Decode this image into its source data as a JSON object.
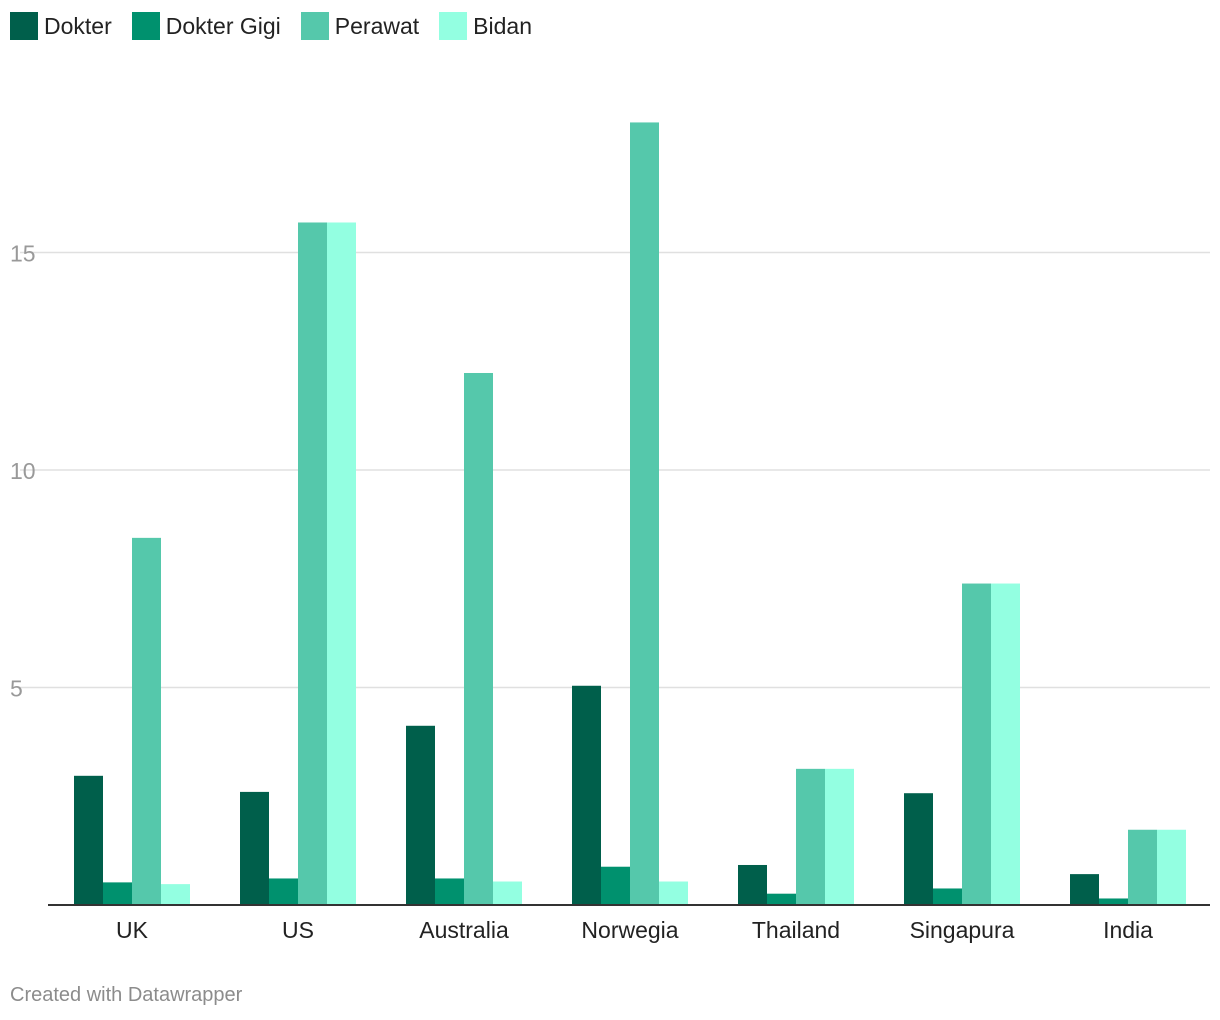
{
  "chart_data": {
    "type": "bar",
    "title": "",
    "xlabel": "",
    "ylabel": "",
    "categories": [
      "UK",
      "US",
      "Australia",
      "Norwegia",
      "Thailand",
      "Singapura",
      "India"
    ],
    "series": [
      {
        "name": "Dokter",
        "color": "#005f4b",
        "values": [
          2.97,
          2.6,
          4.12,
          5.04,
          0.92,
          2.57,
          0.71
        ]
      },
      {
        "name": "Dokter Gigi",
        "color": "#00916e",
        "values": [
          0.52,
          0.61,
          0.61,
          0.88,
          0.26,
          0.38,
          0.15
        ]
      },
      {
        "name": "Perawat",
        "color": "#55c8ab",
        "values": [
          8.44,
          15.69,
          12.23,
          17.99,
          3.13,
          7.39,
          1.73
        ]
      },
      {
        "name": "Bidan",
        "color": "#93ffe1",
        "values": [
          0.48,
          15.69,
          0.54,
          0.54,
          3.13,
          7.39,
          1.73
        ]
      }
    ],
    "ylim": [
      0,
      18.4
    ],
    "yticks": [
      5,
      10,
      15
    ],
    "grid": true,
    "legend_position": "top-left",
    "colors": {
      "gridline": "#e0e0e0",
      "axis": "#333333",
      "tick_label": "#999999",
      "category_label": "#222222"
    }
  },
  "credit": "Created with Datawrapper"
}
